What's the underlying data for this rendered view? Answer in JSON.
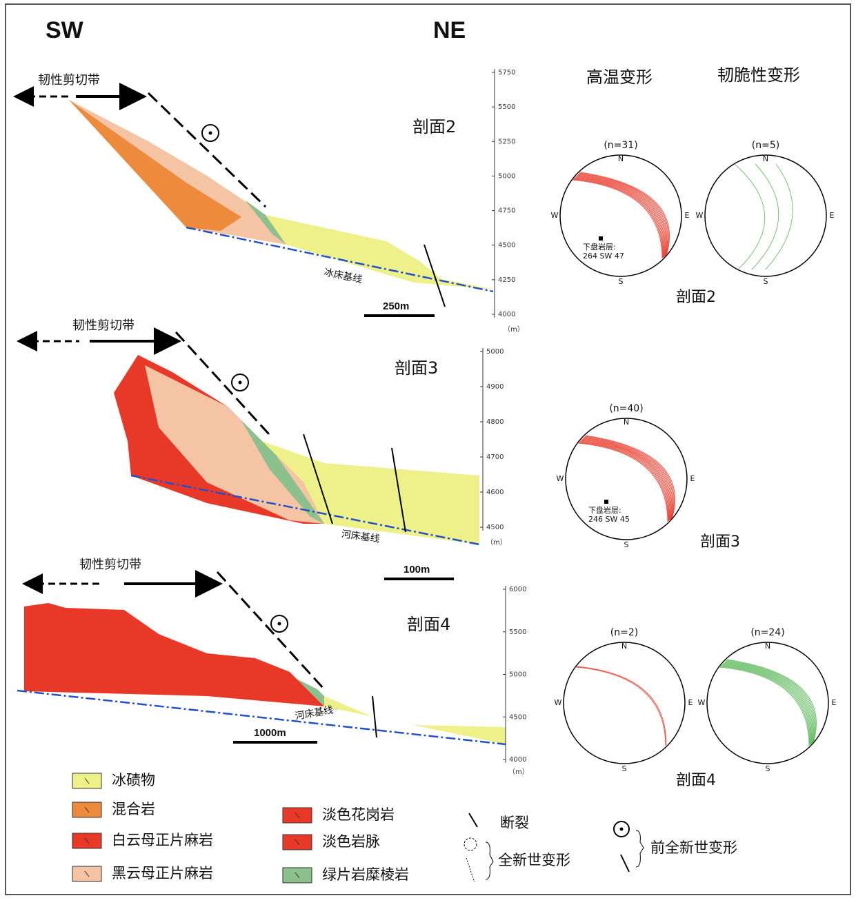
{
  "header": {
    "left": "SW",
    "right": "NE"
  },
  "columns": {
    "high_temp": "高温变形",
    "brittle_ductile": "韧脆性变形"
  },
  "sections": [
    {
      "title": "剖面2",
      "shear_zone": "韧性剪切带",
      "scale": "250m",
      "baseline": "冰床基线",
      "axis_ticks": [
        "5750",
        "5500",
        "5250",
        "5000",
        "4750",
        "4500",
        "4250",
        "4000"
      ],
      "axis_unit": "（m）",
      "stereo_label": "剖面2",
      "stereonets": [
        {
          "n": "(n=31)",
          "compass": [
            "N",
            "E",
            "S",
            "W"
          ],
          "note": [
            "下盘岩层:",
            "264 SW 47"
          ]
        },
        {
          "n": "(n=5)",
          "compass": [
            "N",
            "E",
            "S",
            "W"
          ]
        }
      ]
    },
    {
      "title": "剖面3",
      "shear_zone": "韧性剪切带",
      "scale": "100m",
      "baseline": "河床基线",
      "axis_ticks": [
        "5000",
        "4900",
        "4800",
        "4700",
        "4600",
        "4500"
      ],
      "axis_unit": "（m）",
      "stereo_label": "剖面3",
      "stereonets": [
        {
          "n": "(n=40)",
          "compass": [
            "N",
            "E",
            "S",
            "W"
          ],
          "note": [
            "下盘岩层:",
            "246 SW 45"
          ]
        }
      ]
    },
    {
      "title": "剖面4",
      "shear_zone": "韧性剪切带",
      "scale": "1000m",
      "baseline": "河床基线",
      "axis_ticks": [
        "6000",
        "5500",
        "5000",
        "4500",
        "4000"
      ],
      "axis_unit": "（m）",
      "stereo_label": "剖面4",
      "stereonets": [
        {
          "n": "(n=2)",
          "compass": [
            "N",
            "E",
            "S",
            "W"
          ]
        },
        {
          "n": "(n=24)",
          "compass": [
            "N",
            "E",
            "S",
            "W"
          ]
        }
      ]
    }
  ],
  "legend": {
    "units": [
      "冰碛物",
      "混合岩",
      "白云母正片麻岩",
      "黑云母正片麻岩",
      "淡色花岗岩",
      "淡色岩脉",
      "绿片岩糜棱岩"
    ],
    "fault": "断裂",
    "holocene": "全新世变形",
    "pre_holocene": "前全新世变形"
  }
}
